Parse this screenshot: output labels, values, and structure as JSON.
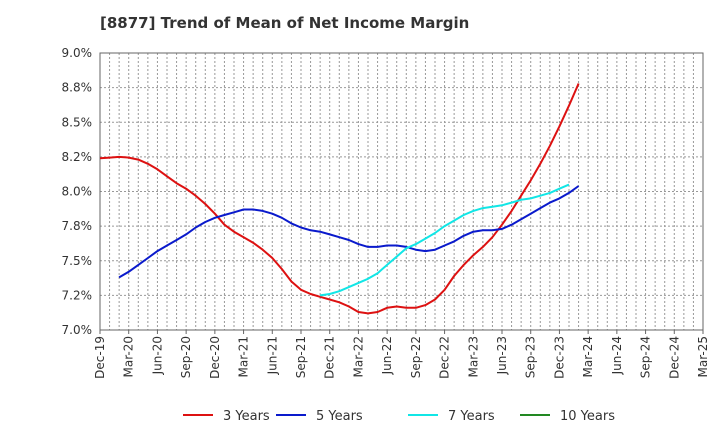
{
  "chart_data": {
    "type": "line",
    "title": "[8877]  Trend of Mean of Net Income Margin",
    "xlabel": "",
    "ylabel": "",
    "ylim": [
      7.0,
      9.0
    ],
    "y_ticks": [
      "7.0%",
      "7.2%",
      "7.5%",
      "7.8%",
      "8.0%",
      "8.2%",
      "8.5%",
      "8.8%",
      "9.0%"
    ],
    "y_tick_values": [
      7.0,
      7.25,
      7.5,
      7.75,
      8.0,
      8.25,
      8.5,
      8.75,
      9.0
    ],
    "x_ticks": [
      "Dec-19",
      "Mar-20",
      "Jun-20",
      "Sep-20",
      "Dec-20",
      "Mar-21",
      "Jun-21",
      "Sep-21",
      "Dec-21",
      "Mar-22",
      "Jun-22",
      "Sep-22",
      "Dec-22",
      "Mar-23",
      "Jun-23",
      "Sep-23",
      "Dec-23",
      "Mar-24",
      "Jun-24",
      "Sep-24",
      "Dec-24",
      "Mar-25"
    ],
    "grid": true,
    "legend_position": "bottom",
    "series": [
      {
        "name": "3 Years",
        "color": "#dd1111",
        "start_index": 0,
        "values": [
          8.24,
          8.245,
          8.25,
          8.245,
          8.23,
          8.2,
          8.16,
          8.11,
          8.06,
          8.02,
          7.97,
          7.91,
          7.84,
          7.76,
          7.71,
          7.67,
          7.63,
          7.58,
          7.52,
          7.44,
          7.35,
          7.29,
          7.26,
          7.24,
          7.22,
          7.2,
          7.17,
          7.13,
          7.12,
          7.13,
          7.16,
          7.17,
          7.16,
          7.16,
          7.18,
          7.22,
          7.29,
          7.39,
          7.47,
          7.54,
          7.6,
          7.67,
          7.76,
          7.86,
          7.97,
          8.08,
          8.2,
          8.33,
          8.47,
          8.62,
          8.78
        ]
      },
      {
        "name": "5 Years",
        "color": "#0a1acc",
        "start_index": 2,
        "values": [
          7.38,
          7.42,
          7.47,
          7.52,
          7.57,
          7.61,
          7.65,
          7.69,
          7.74,
          7.78,
          7.81,
          7.83,
          7.85,
          7.87,
          7.87,
          7.86,
          7.84,
          7.81,
          7.77,
          7.74,
          7.72,
          7.71,
          7.69,
          7.67,
          7.65,
          7.62,
          7.6,
          7.6,
          7.61,
          7.61,
          7.6,
          7.58,
          7.57,
          7.58,
          7.61,
          7.64,
          7.68,
          7.71,
          7.72,
          7.72,
          7.73,
          7.76,
          7.8,
          7.84,
          7.88,
          7.92,
          7.95,
          7.99,
          8.04
        ]
      },
      {
        "name": "7 Years",
        "color": "#11e6e6",
        "start_index": 23,
        "values": [
          7.25,
          7.26,
          7.28,
          7.31,
          7.34,
          7.37,
          7.41,
          7.47,
          7.53,
          7.59,
          7.62,
          7.66,
          7.7,
          7.75,
          7.79,
          7.83,
          7.86,
          7.88,
          7.89,
          7.9,
          7.92,
          7.94,
          7.95,
          7.97,
          7.99,
          8.02,
          8.05
        ]
      },
      {
        "name": "10 Years",
        "color": "#228822",
        "start_index": 0,
        "values": []
      }
    ]
  }
}
